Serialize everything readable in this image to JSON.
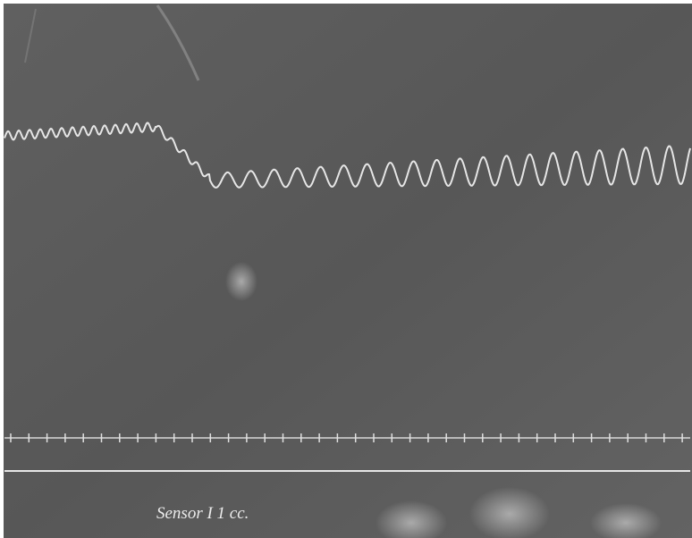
{
  "annotation": "Sensor I 1 cc."
}
